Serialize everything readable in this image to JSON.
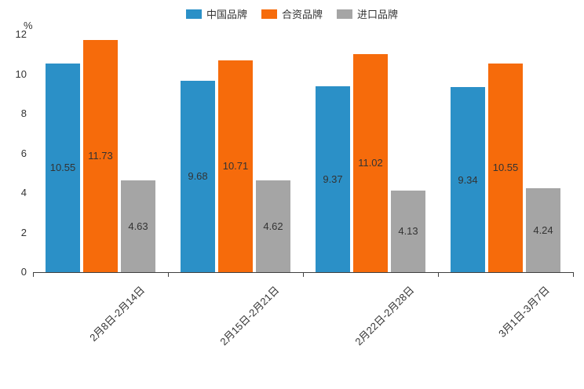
{
  "chart_data": {
    "type": "bar",
    "title": "",
    "xlabel": "",
    "ylabel": "%",
    "ylim": [
      0,
      12
    ],
    "yticks": [
      0,
      2,
      4,
      6,
      8,
      10,
      12
    ],
    "grid": false,
    "legend_position": "top",
    "categories": [
      "2月8日-2月14日",
      "2月15日-2月21日",
      "2月22日-2月28日",
      "3月1日-3月7日"
    ],
    "series": [
      {
        "name": "中国品牌",
        "color": "#2b90c7",
        "values": [
          10.55,
          9.68,
          9.37,
          9.34
        ]
      },
      {
        "name": "合资品牌",
        "color": "#f66b0b",
        "values": [
          11.73,
          10.71,
          11.02,
          10.55
        ]
      },
      {
        "name": "进口品牌",
        "color": "#a5a5a5",
        "values": [
          4.63,
          4.62,
          4.13,
          4.24
        ]
      }
    ],
    "value_label_decimals": 2,
    "axis_color": "#3f3f3f"
  }
}
